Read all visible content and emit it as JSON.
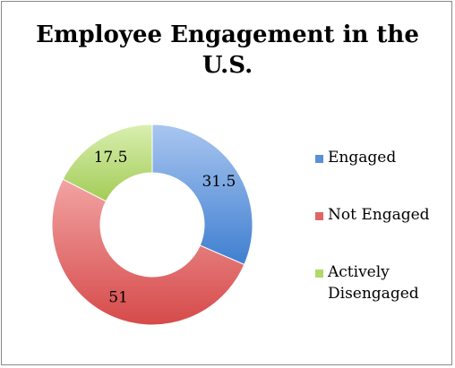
{
  "chart_data": {
    "type": "pie",
    "variant": "doughnut",
    "title": "Employee Engagement in the U.S.",
    "categories": [
      "Engaged",
      "Not Engaged",
      "Actively Disengaged"
    ],
    "values": [
      31.5,
      51,
      17.5
    ],
    "data_labels": [
      "31.5",
      "51",
      "17.5"
    ],
    "colors": [
      "#5b8fd6",
      "#e06565",
      "#b2d86a"
    ],
    "legend_position": "right"
  },
  "legend": {
    "items": [
      {
        "label": "Engaged",
        "color": "#5b8fd6"
      },
      {
        "label": "Not Engaged",
        "color": "#e06565"
      },
      {
        "label": "Actively\nDisengaged",
        "color": "#b2d86a"
      }
    ]
  }
}
